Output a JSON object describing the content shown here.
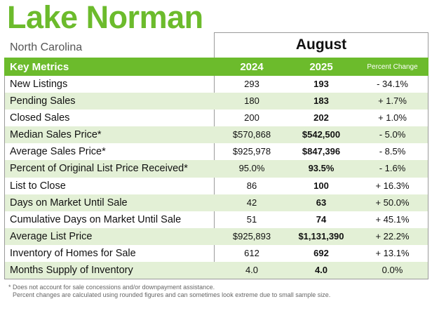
{
  "header": {
    "title": "Lake Norman",
    "subtitle": "North Carolina",
    "month": "August"
  },
  "table": {
    "columns": {
      "metric": "Key Metrics",
      "year_prev": "2024",
      "year_curr": "2025",
      "change": "Percent Change"
    },
    "rows": [
      {
        "metric": "New Listings",
        "prev": "293",
        "curr": "193",
        "change": "- 34.1%"
      },
      {
        "metric": "Pending Sales",
        "prev": "180",
        "curr": "183",
        "change": "+ 1.7%"
      },
      {
        "metric": "Closed Sales",
        "prev": "200",
        "curr": "202",
        "change": "+ 1.0%"
      },
      {
        "metric": "Median Sales Price*",
        "prev": "$570,868",
        "curr": "$542,500",
        "change": "- 5.0%"
      },
      {
        "metric": "Average Sales Price*",
        "prev": "$925,978",
        "curr": "$847,396",
        "change": "- 8.5%"
      },
      {
        "metric": "Percent of Original List Price Received*",
        "prev": "95.0%",
        "curr": "93.5%",
        "change": "- 1.6%"
      },
      {
        "metric": "List to Close",
        "prev": "86",
        "curr": "100",
        "change": "+ 16.3%"
      },
      {
        "metric": "Days on Market Until Sale",
        "prev": "42",
        "curr": "63",
        "change": "+ 50.0%"
      },
      {
        "metric": "Cumulative Days on Market Until Sale",
        "prev": "51",
        "curr": "74",
        "change": "+ 45.1%"
      },
      {
        "metric": "Average List Price",
        "prev": "$925,893",
        "curr": "$1,131,390",
        "change": "+ 22.2%"
      },
      {
        "metric": "Inventory of Homes for Sale",
        "prev": "612",
        "curr": "692",
        "change": "+ 13.1%"
      },
      {
        "metric": "Months Supply of Inventory",
        "prev": "4.0",
        "curr": "4.0",
        "change": "0.0%"
      }
    ]
  },
  "footnotes": {
    "line1": "* Does not account for sale concessions and/or downpayment assistance.",
    "line2": "Percent changes are calculated using rounded figures and can sometimes look extreme due to small sample size."
  },
  "colors": {
    "accent": "#6cbb2c",
    "row_alt": "#e3f0d6"
  }
}
